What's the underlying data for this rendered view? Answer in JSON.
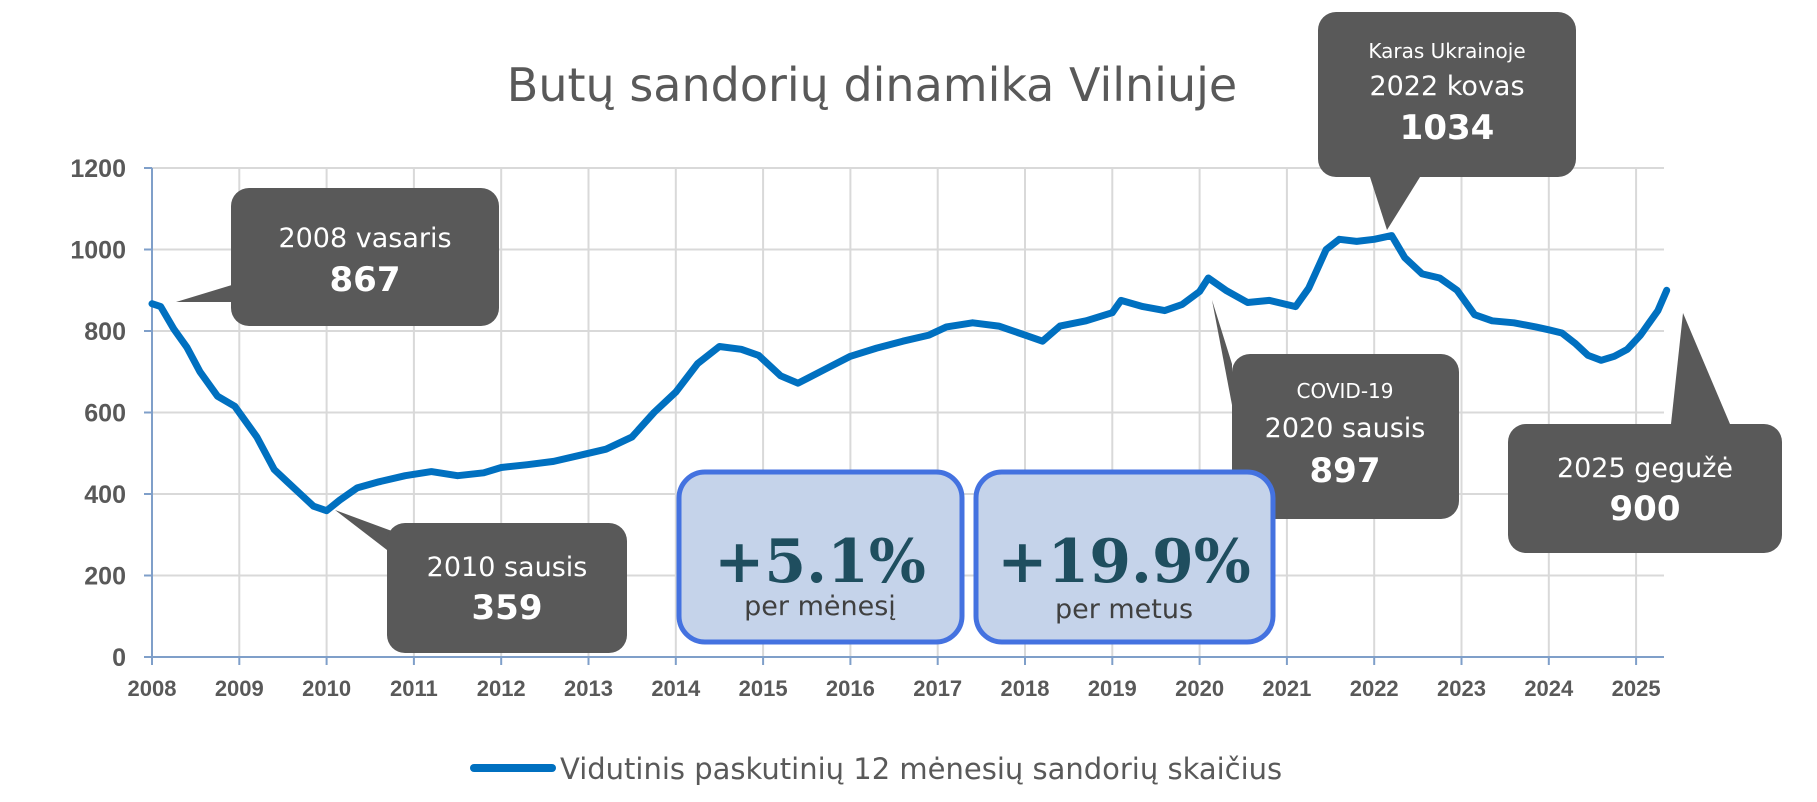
{
  "chart_data": {
    "type": "line",
    "title": "Butų sandorių dinamika Vilniuje",
    "ylim": [
      0,
      1200
    ],
    "yticks": [
      "0",
      "200",
      "400",
      "600",
      "800",
      "1000",
      "1200"
    ],
    "xticks": [
      "2008",
      "2009",
      "2010",
      "2011",
      "2012",
      "2013",
      "2014",
      "2015",
      "2016",
      "2017",
      "2018",
      "2019",
      "2020",
      "2021",
      "2022",
      "2023",
      "2024",
      "2025"
    ],
    "xlim": [
      2008,
      2025.35
    ],
    "grid": true,
    "legend": "bottom",
    "series": [
      {
        "name": "Vidutinis paskutinių 12 mėnesių sandorių skaičius",
        "color": "#0070c0",
        "x": [
          2008.0,
          2008.1,
          2008.25,
          2008.4,
          2008.55,
          2008.75,
          2008.95,
          2009.2,
          2009.4,
          2009.55,
          2009.7,
          2009.85,
          2010.0,
          2010.15,
          2010.35,
          2010.6,
          2010.9,
          2011.2,
          2011.5,
          2011.8,
          2012.0,
          2012.3,
          2012.6,
          2012.9,
          2013.2,
          2013.5,
          2013.75,
          2014.0,
          2014.25,
          2014.5,
          2014.75,
          2014.95,
          2015.2,
          2015.4,
          2015.7,
          2016.0,
          2016.3,
          2016.6,
          2016.9,
          2017.1,
          2017.4,
          2017.7,
          2018.0,
          2018.2,
          2018.4,
          2018.7,
          2019.0,
          2019.1,
          2019.35,
          2019.6,
          2019.8,
          2020.0,
          2020.1,
          2020.3,
          2020.55,
          2020.8,
          2021.1,
          2021.25,
          2021.45,
          2021.6,
          2021.8,
          2022.0,
          2022.2,
          2022.35,
          2022.55,
          2022.75,
          2022.95,
          2023.15,
          2023.35,
          2023.6,
          2023.85,
          2024.0,
          2024.15,
          2024.3,
          2024.45,
          2024.6,
          2024.75,
          2024.9,
          2025.05,
          2025.15,
          2025.25,
          2025.35
        ],
        "values": [
          867,
          860,
          805,
          760,
          700,
          640,
          615,
          540,
          460,
          430,
          400,
          370,
          359,
          385,
          415,
          430,
          445,
          455,
          445,
          452,
          465,
          472,
          480,
          495,
          510,
          540,
          600,
          650,
          720,
          762,
          755,
          740,
          690,
          672,
          705,
          738,
          758,
          775,
          790,
          810,
          820,
          812,
          790,
          775,
          812,
          825,
          845,
          875,
          860,
          850,
          865,
          897,
          930,
          900,
          870,
          875,
          860,
          905,
          1000,
          1025,
          1020,
          1025,
          1034,
          980,
          940,
          930,
          900,
          840,
          825,
          820,
          810,
          803,
          795,
          770,
          740,
          728,
          738,
          755,
          790,
          820,
          850,
          900
        ]
      }
    ],
    "annotations": [
      {
        "small": "",
        "date": "2008 vasaris",
        "value": "867"
      },
      {
        "small": "",
        "date": "2010 sausis",
        "value": "359"
      },
      {
        "small": "COVID-19",
        "date": "2020 sausis",
        "value": "897"
      },
      {
        "small": "Karas Ukrainoje",
        "date": "2022 kovas",
        "value": "1034"
      },
      {
        "small": "",
        "date": "2025 gegužė",
        "value": "900"
      }
    ],
    "summary_boxes": [
      {
        "value": "+5.1%",
        "label": "per mėnesį"
      },
      {
        "value": "+19.9%",
        "label": "per metus"
      }
    ]
  },
  "colors": {
    "line": "#0070c0",
    "callout": "#595959",
    "box_fill": "#c5d3ea",
    "box_border": "#4472e0",
    "grid": "#d9d9d9",
    "axis": "#7f9fc9"
  }
}
